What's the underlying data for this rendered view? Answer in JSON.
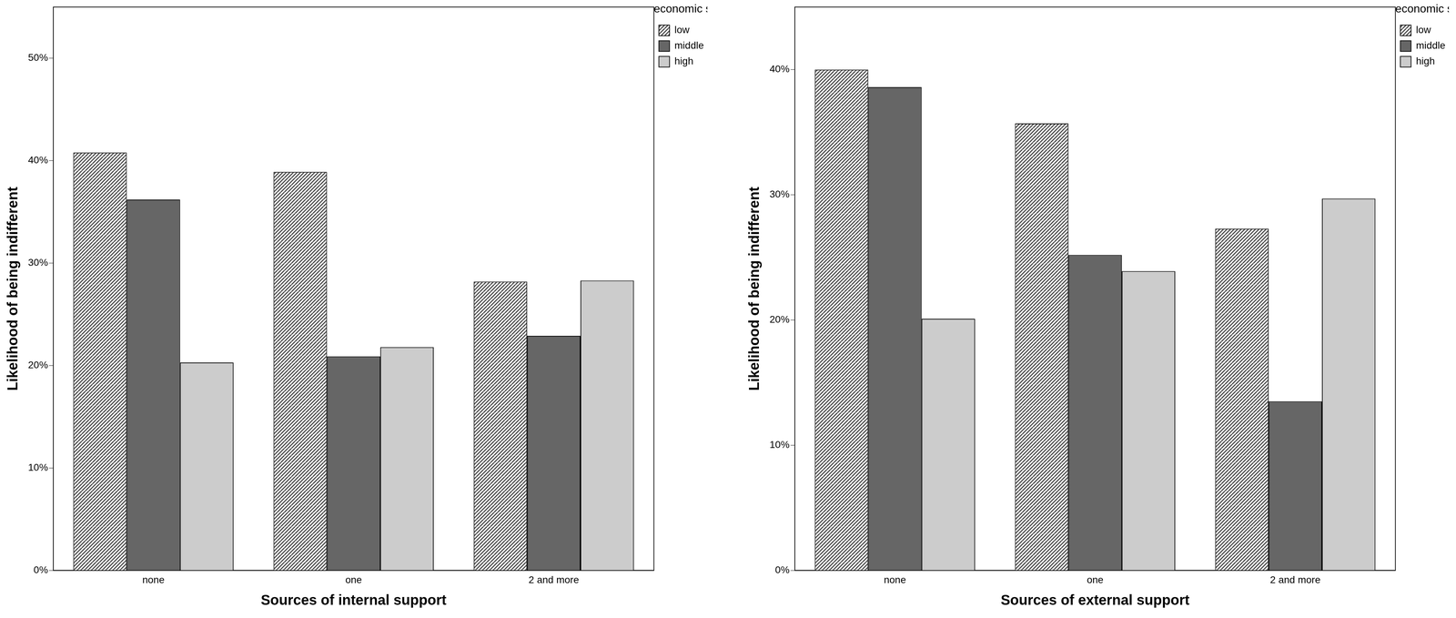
{
  "chart_data": [
    {
      "type": "bar",
      "x_label": "Sources of internal support",
      "y_label": "Likelihood of being indifferent",
      "legend_title": "Socioeconomic status",
      "legend": "right",
      "grid": false,
      "categories": [
        "none",
        "one",
        "2 and more"
      ],
      "series": [
        {
          "name": "low",
          "color": "#404040",
          "values": [
            40.8,
            38.9,
            28.2
          ]
        },
        {
          "name": "middle",
          "color": "#666666",
          "values": [
            36.2,
            20.9,
            22.9
          ]
        },
        {
          "name": "high",
          "color": "#cccccc",
          "values": [
            20.3,
            21.8,
            28.3
          ]
        }
      ],
      "ylim": [
        0,
        55
      ],
      "yticks": [
        {
          "value": 0,
          "label": "0%"
        },
        {
          "value": 10,
          "label": "10%"
        },
        {
          "value": 20,
          "label": "20%"
        },
        {
          "value": 30,
          "label": "30%"
        },
        {
          "value": 40,
          "label": "40%"
        },
        {
          "value": 50,
          "label": "50%"
        }
      ]
    },
    {
      "type": "bar",
      "x_label": "Sources of external support",
      "y_label": "Likelihood of being indifferent",
      "legend_title": "Socioeconomic status",
      "legend": "right",
      "grid": false,
      "categories": [
        "none",
        "one",
        "2 and more"
      ],
      "series": [
        {
          "name": "low",
          "color": "#404040",
          "values": [
            40.0,
            35.7,
            27.3
          ]
        },
        {
          "name": "middle",
          "color": "#666666",
          "values": [
            38.6,
            25.2,
            13.5
          ]
        },
        {
          "name": "high",
          "color": "#cccccc",
          "values": [
            20.1,
            23.9,
            29.7
          ]
        }
      ],
      "ylim": [
        0,
        45
      ],
      "yticks": [
        {
          "value": 0,
          "label": "0%"
        },
        {
          "value": 10,
          "label": "10%"
        },
        {
          "value": 20,
          "label": "20%"
        },
        {
          "value": 30,
          "label": "30%"
        },
        {
          "value": 40,
          "label": "40%"
        }
      ]
    }
  ]
}
